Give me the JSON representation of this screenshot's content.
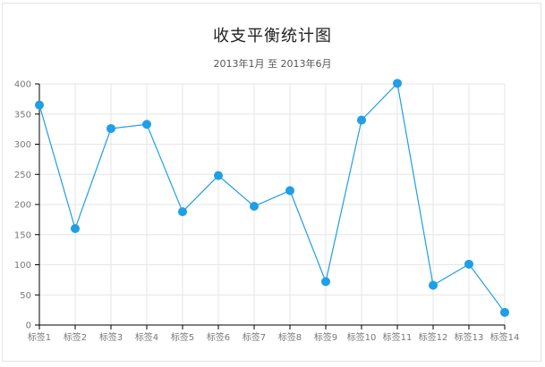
{
  "chart_data": {
    "type": "line",
    "title": "收支平衡统计图",
    "subtitle": "2013年1月 至 2013年6月",
    "categories": [
      "标签1",
      "标签2",
      "标签3",
      "标签4",
      "标签5",
      "标签6",
      "标签7",
      "标签8",
      "标签9",
      "标签10",
      "标签11",
      "标签12",
      "标签13",
      "标签14"
    ],
    "series": [
      {
        "values": [
          365,
          160,
          326,
          333,
          188,
          248,
          197,
          223,
          72,
          340,
          401,
          66,
          101,
          21
        ]
      }
    ],
    "ylim": [
      0,
      400
    ],
    "yticks": [
      0,
      50,
      100,
      150,
      200,
      250,
      300,
      350,
      400
    ],
    "grid": true,
    "line_color": "#1e9fe6",
    "point_color": "#1e9fe6",
    "grid_color": "#e6e6e6",
    "axis_color": "#000000"
  }
}
